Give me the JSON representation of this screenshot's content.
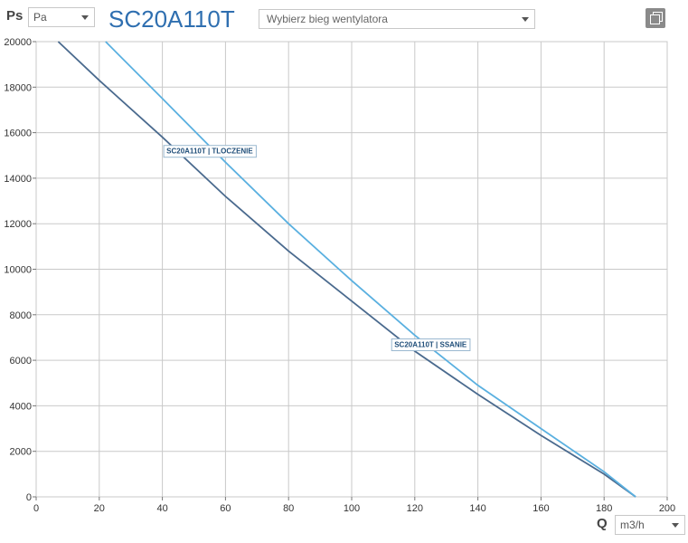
{
  "header": {
    "ps_label": "Ps",
    "ps_unit": "Pa",
    "model": "SC20A110T",
    "fan_speed_placeholder": "Wybierz bieg wentylatora"
  },
  "footer": {
    "q_label": "Q",
    "q_unit": "m3/h"
  },
  "icons": {
    "copy": "copy-icon"
  },
  "chart_data": {
    "type": "line",
    "xlim": [
      0,
      200
    ],
    "ylim": [
      0,
      20000
    ],
    "xticks": [
      "0",
      "20",
      "40",
      "60",
      "80",
      "100",
      "120",
      "140",
      "160",
      "180",
      "200"
    ],
    "yticks": [
      "0",
      "2000",
      "4000",
      "6000",
      "8000",
      "10000",
      "12000",
      "14000",
      "16000",
      "18000",
      "20000"
    ],
    "grid": true,
    "series": [
      {
        "name": "SC20A110T | TLOCZENIE",
        "color": "#4a6a8e",
        "points": [
          [
            7,
            20000
          ],
          [
            20,
            18300
          ],
          [
            40,
            15800
          ],
          [
            60,
            13200
          ],
          [
            80,
            10800
          ],
          [
            100,
            8600
          ],
          [
            120,
            6400
          ],
          [
            140,
            4500
          ],
          [
            160,
            2700
          ],
          [
            180,
            1000
          ],
          [
            190,
            0
          ]
        ]
      },
      {
        "name": "SC20A110T | SSANIE",
        "color": "#5ab0e0",
        "points": [
          [
            22,
            20000
          ],
          [
            40,
            17500
          ],
          [
            60,
            14700
          ],
          [
            80,
            12000
          ],
          [
            100,
            9500
          ],
          [
            120,
            7100
          ],
          [
            140,
            4900
          ],
          [
            160,
            3000
          ],
          [
            180,
            1100
          ],
          [
            190,
            0
          ]
        ]
      }
    ]
  }
}
